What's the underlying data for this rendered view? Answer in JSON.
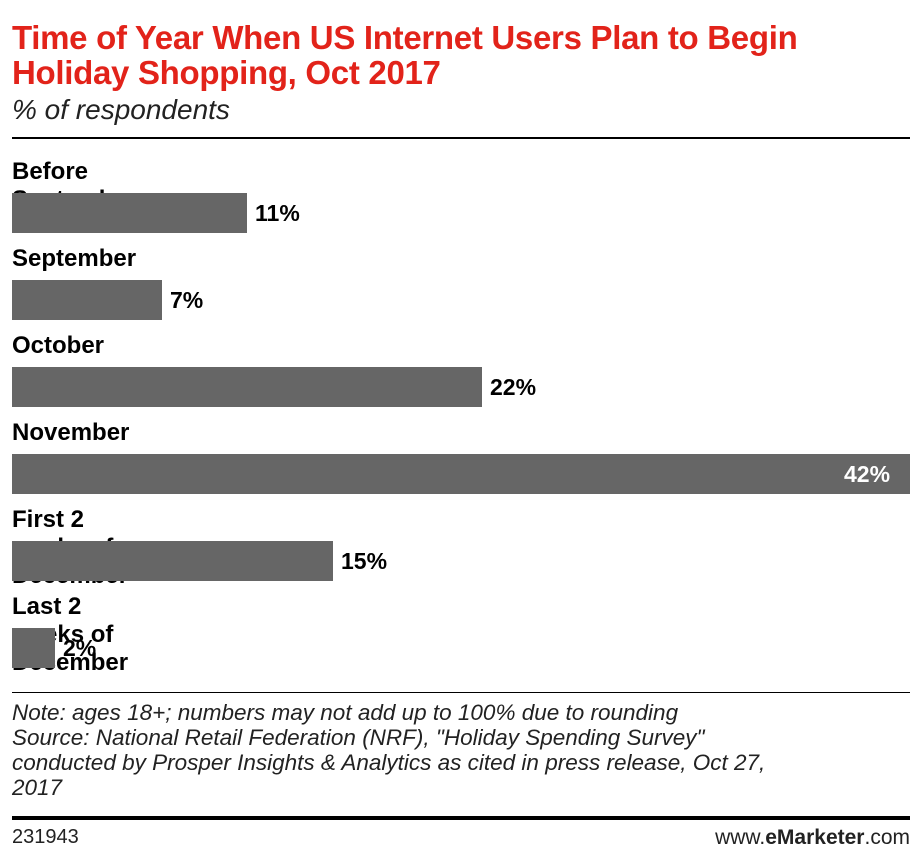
{
  "chart_data": {
    "type": "bar",
    "orientation": "horizontal",
    "title": "Time of Year When US Internet Users Plan to Begin Holiday Shopping, Oct 2017",
    "subtitle": "% of respondents",
    "categories": [
      "Before September",
      "September",
      "October",
      "November",
      "First 2 weeks of December",
      "Last 2 weeks of December"
    ],
    "values": [
      11,
      7,
      22,
      42,
      15,
      2
    ],
    "value_labels": [
      "11%",
      "7%",
      "22%",
      "42%",
      "15%",
      "2%"
    ],
    "xlim": [
      0,
      42
    ],
    "bar_color": "#666666"
  },
  "title_color": "#e2231a",
  "note_lines": [
    "Note: ages 18+; numbers may not add up to 100% due to rounding",
    "Source: National Retail Federation (NRF), \"Holiday Spending Survey\"",
    "conducted by Prosper Insights & Analytics as cited in press release, Oct 27,",
    "2017"
  ],
  "footer": {
    "chart_id": "231943",
    "brand_prefix": "www.",
    "brand_bold": "eMarketer",
    "brand_suffix": ".com"
  }
}
